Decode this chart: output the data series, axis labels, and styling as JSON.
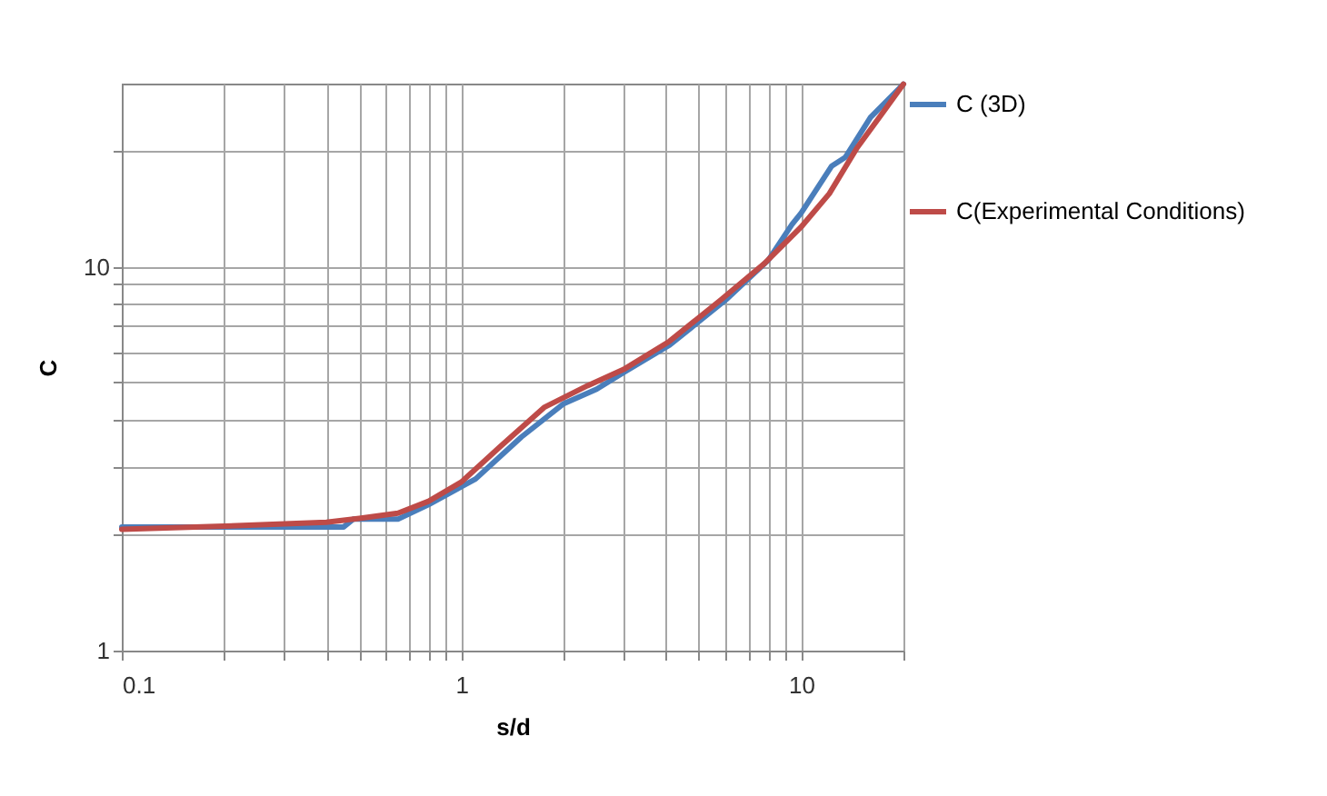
{
  "chart_data": {
    "type": "line",
    "xlabel": "s/d",
    "ylabel": "C",
    "log": "xy",
    "grid": true,
    "legend": "right",
    "marker": "none",
    "xlim": [
      0.1,
      20
    ],
    "ylim": [
      1,
      30
    ],
    "xticks": [
      0.1,
      {
        "value": 0.2,
        "label": null
      },
      {
        "value": 0.3,
        "label": null
      },
      {
        "value": 0.4,
        "label": null
      },
      {
        "value": 0.5,
        "label": null
      },
      {
        "value": 0.6,
        "label": null
      },
      {
        "value": 0.7,
        "label": null
      },
      {
        "value": 0.8,
        "label": null
      },
      {
        "value": 0.9,
        "label": null
      },
      1,
      {
        "value": 2,
        "label": null
      },
      {
        "value": 3,
        "label": null
      },
      {
        "value": 4,
        "label": null
      },
      {
        "value": 5,
        "label": null
      },
      {
        "value": 6,
        "label": null
      },
      {
        "value": 7,
        "label": null
      },
      {
        "value": 8,
        "label": null
      },
      {
        "value": 9,
        "label": null
      },
      10,
      {
        "value": 20,
        "label": null
      }
    ],
    "yticks": [
      1,
      {
        "value": 2,
        "label": null
      },
      {
        "value": 3,
        "label": null
      },
      {
        "value": 4,
        "label": null
      },
      {
        "value": 5,
        "label": null
      },
      {
        "value": 6,
        "label": null
      },
      {
        "value": 7,
        "label": null
      },
      {
        "value": 8,
        "label": null
      },
      {
        "value": 9,
        "label": null
      },
      10,
      {
        "value": 20,
        "label": null
      }
    ],
    "series": [
      {
        "name": "C (3D)",
        "color": "#4a7ebb",
        "x": [
          0.1,
          0.2,
          0.3,
          0.45,
          0.48,
          0.65,
          0.8,
          1.1,
          1.5,
          2.0,
          2.5,
          3.0,
          4.1,
          6.0,
          8.0,
          9.4,
          10,
          12.3,
          13.5,
          16,
          20
        ],
        "values": [
          2.1,
          2.1,
          2.1,
          2.1,
          2.2,
          2.2,
          2.4,
          2.8,
          3.6,
          4.4,
          4.8,
          5.3,
          6.25,
          8.2,
          10.4,
          12.9,
          13.8,
          18.3,
          19.3,
          24.5,
          29.9
        ]
      },
      {
        "name": "C(Experimental Conditions)",
        "color": "#be4b48",
        "x": [
          0.1,
          0.2,
          0.4,
          0.5,
          0.65,
          0.8,
          1,
          1.3,
          1.75,
          2.35,
          3.0,
          4.1,
          5.8,
          7.8,
          10,
          12.1,
          14.6,
          17.5,
          20
        ],
        "values": [
          2.07,
          2.11,
          2.16,
          2.21,
          2.28,
          2.45,
          2.75,
          3.4,
          4.3,
          4.9,
          5.4,
          6.4,
          8.2,
          10.2,
          12.7,
          15.5,
          20.4,
          25.4,
          29.9
        ]
      }
    ]
  }
}
